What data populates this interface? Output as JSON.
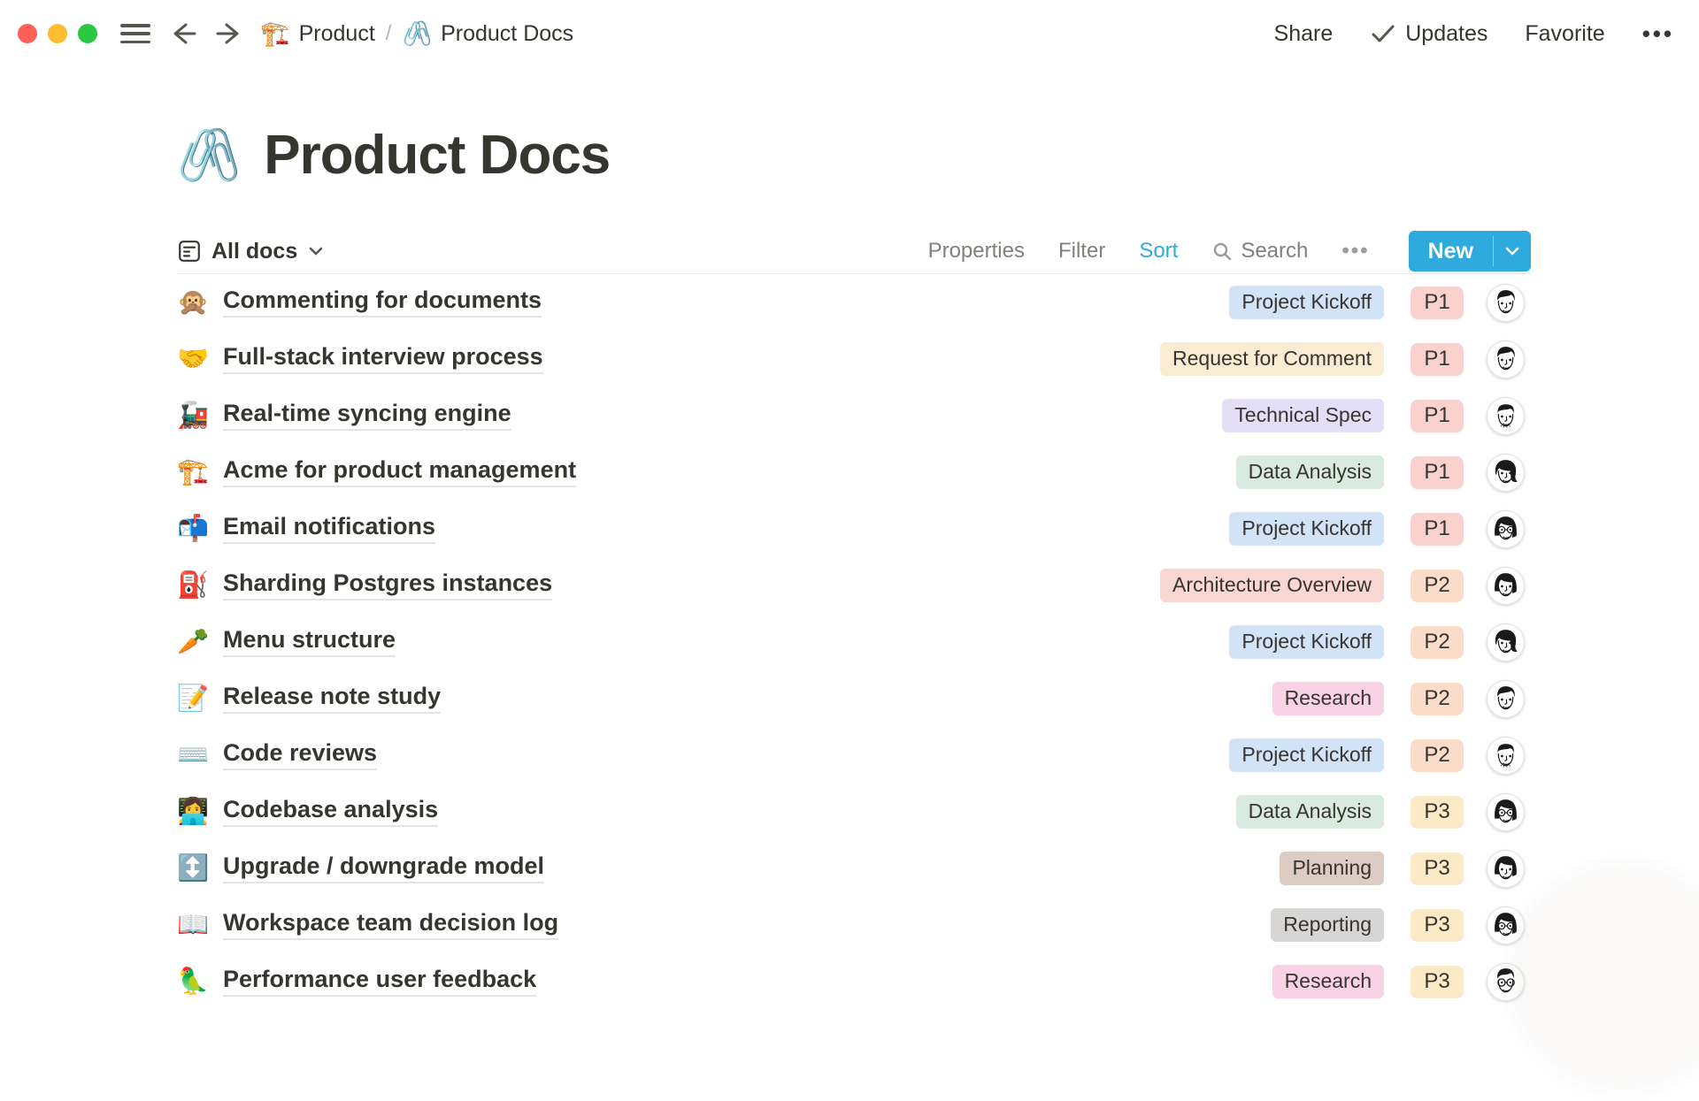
{
  "topbar": {
    "breadcrumb": [
      {
        "icon": "🏗️",
        "label": "Product"
      },
      {
        "icon": "🖇️",
        "label": "Product Docs"
      }
    ],
    "separator": "/",
    "share_label": "Share",
    "updates_label": "Updates",
    "favorite_label": "Favorite",
    "more_label": "•••"
  },
  "page": {
    "icon": "🖇️",
    "title": "Product Docs"
  },
  "toolbar": {
    "view_label": "All docs",
    "properties_label": "Properties",
    "filter_label": "Filter",
    "sort_label": "Sort",
    "active_item": "Sort",
    "search_label": "Search",
    "more_label": "•••",
    "new_label": "New"
  },
  "palette": {
    "accent_blue": "#2EAADC",
    "tag": {
      "blue": "#D2E2F7",
      "cream": "#FAEBD3",
      "purple": "#E4DEF7",
      "green": "#D9EAE0",
      "red": "#F9D7D3",
      "pink": "#F9D2E5",
      "brown": "#DCCCC3",
      "gray": "#D7D6D4"
    },
    "priority": {
      "P1": "#F9D2CE",
      "P2": "#FBDCC9",
      "P3": "#FAEAC8"
    }
  },
  "rows": [
    {
      "icon": "🙊",
      "title": "Commenting for documents",
      "tag": "Project Kickoff",
      "tag_color": "blue",
      "priority": "P1",
      "avatar": "man-dark"
    },
    {
      "icon": "🤝",
      "title": "Full-stack interview process",
      "tag": "Request for Comment",
      "tag_color": "cream",
      "priority": "P1",
      "avatar": "man-dark"
    },
    {
      "icon": "🚂",
      "title": "Real-time syncing engine",
      "tag": "Technical Spec",
      "tag_color": "purple",
      "priority": "P1",
      "avatar": "man-stubble"
    },
    {
      "icon": "🏗️",
      "title": "Acme for product management",
      "tag": "Data Analysis",
      "tag_color": "green",
      "priority": "P1",
      "avatar": "woman-swept"
    },
    {
      "icon": "📬",
      "title": "Email notifications",
      "tag": "Project Kickoff",
      "tag_color": "blue",
      "priority": "P1",
      "avatar": "woman-glasses"
    },
    {
      "icon": "⛽",
      "title": "Sharding Postgres instances",
      "tag": "Architecture Overview",
      "tag_color": "red",
      "priority": "P2",
      "avatar": "woman-bob"
    },
    {
      "icon": "🥕",
      "title": "Menu structure",
      "tag": "Project Kickoff",
      "tag_color": "blue",
      "priority": "P2",
      "avatar": "woman-swept"
    },
    {
      "icon": "📝",
      "title": "Release note study",
      "tag": "Research",
      "tag_color": "pink",
      "priority": "P2",
      "avatar": "man-dark"
    },
    {
      "icon": "⌨️",
      "title": "Code reviews",
      "tag": "Project Kickoff",
      "tag_color": "blue",
      "priority": "P2",
      "avatar": "man-stubble"
    },
    {
      "icon": "👩‍💻",
      "title": "Codebase analysis",
      "tag": "Data Analysis",
      "tag_color": "green",
      "priority": "P3",
      "avatar": "woman-glasses"
    },
    {
      "icon": "↕️",
      "title": "Upgrade / downgrade model",
      "tag": "Planning",
      "tag_color": "brown",
      "priority": "P3",
      "avatar": "woman-bob"
    },
    {
      "icon": "📖",
      "title": "Workspace team decision log",
      "tag": "Reporting",
      "tag_color": "gray",
      "priority": "P3",
      "avatar": "woman-glasses"
    },
    {
      "icon": "🦜",
      "title": "Performance user feedback",
      "tag": "Research",
      "tag_color": "pink",
      "priority": "P3",
      "avatar": "man-glasses"
    }
  ]
}
